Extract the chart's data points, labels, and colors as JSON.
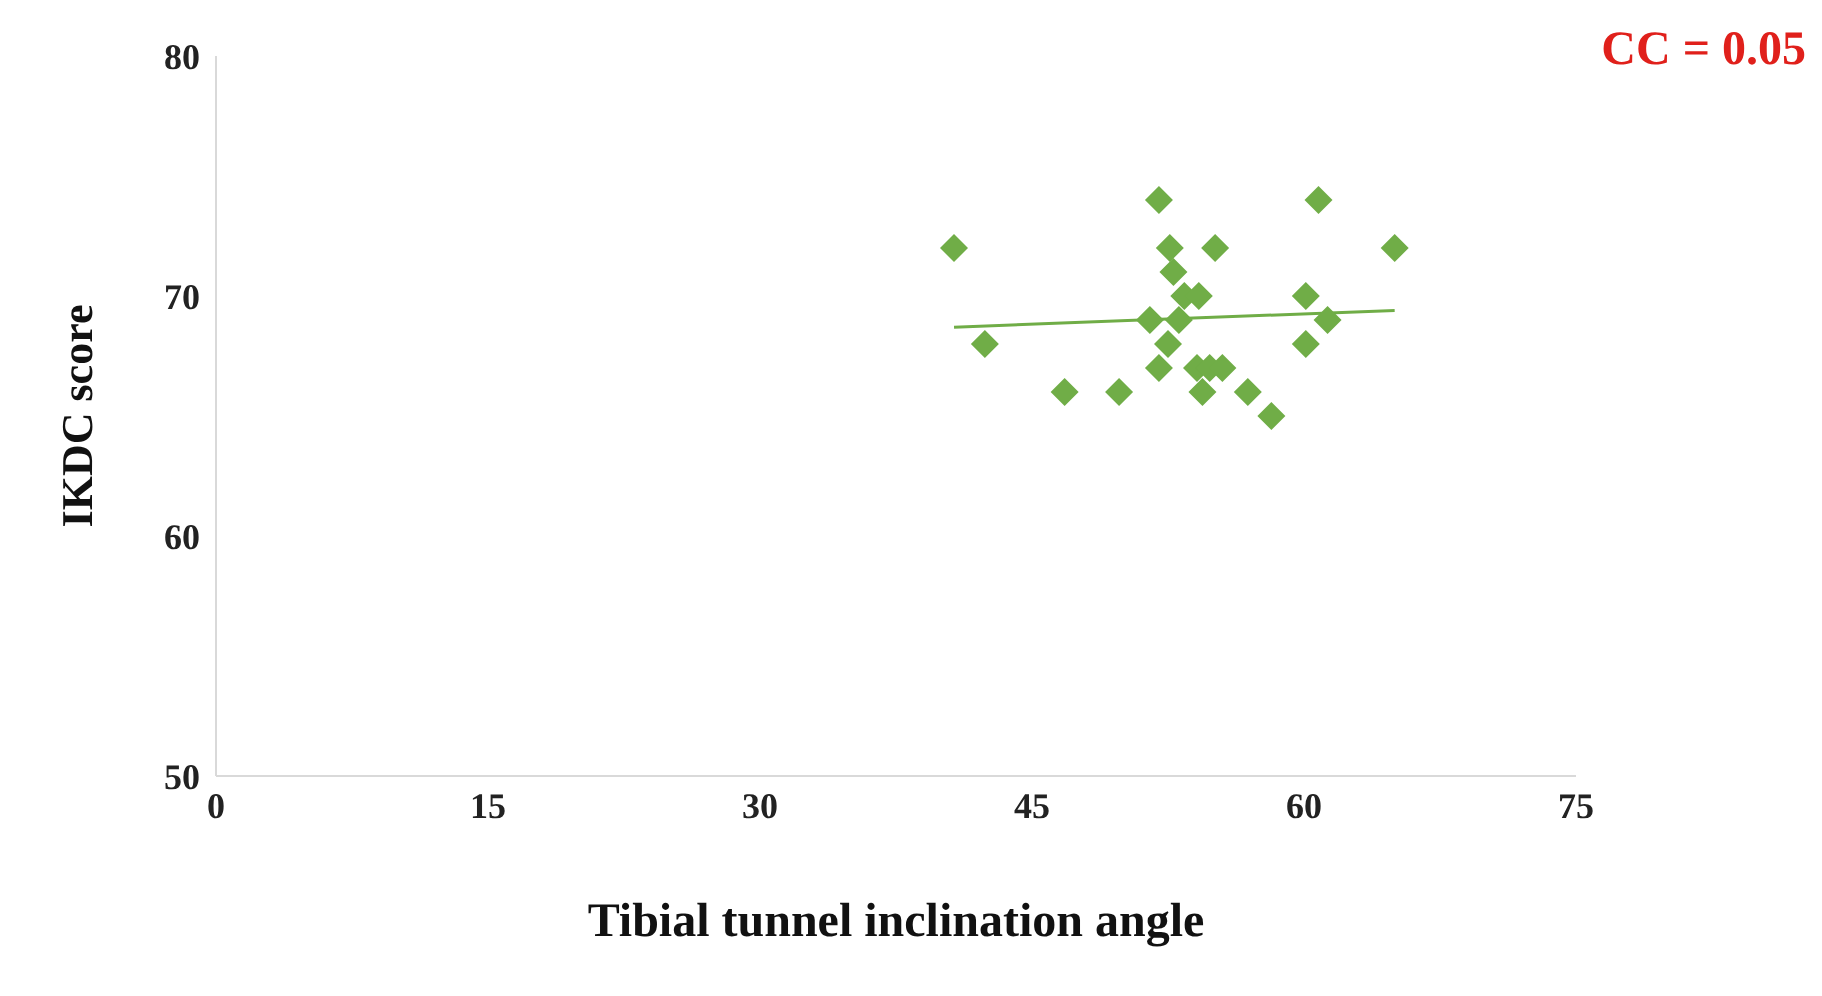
{
  "chart_data": {
    "type": "scatter",
    "xlabel": "Tibial tunnel inclination  angle",
    "ylabel": "IKDC score",
    "annotations": [
      "CC = 0.05"
    ],
    "xlim": [
      0,
      75
    ],
    "xticks": [
      0,
      15,
      30,
      45,
      60,
      75
    ],
    "ylim": [
      50,
      80
    ],
    "yticks": [
      50,
      60,
      70,
      80
    ],
    "grid": false,
    "marker": "diamond",
    "series": [
      {
        "color": "#70ad47",
        "x": [
          40.7,
          52.0,
          60.8,
          52.6,
          55.1,
          65.0,
          52.8,
          53.4,
          54.2,
          60.1,
          51.5,
          53.1,
          61.3,
          42.4,
          52.5,
          60.1,
          52.0,
          54.1,
          54.8,
          55.5,
          54.4,
          46.8,
          49.8,
          56.9,
          58.2
        ],
        "values": [
          72,
          74,
          74,
          72,
          72,
          72,
          71,
          70,
          70,
          70,
          69,
          69,
          69,
          68,
          68,
          68,
          67,
          67,
          67,
          67,
          66,
          66,
          66,
          66,
          65
        ]
      },
      {
        "type": "line",
        "color": "#70ad47",
        "x": [
          40.7,
          65.0
        ],
        "values": [
          68.7,
          69.4
        ],
        "marker": "none"
      }
    ]
  }
}
